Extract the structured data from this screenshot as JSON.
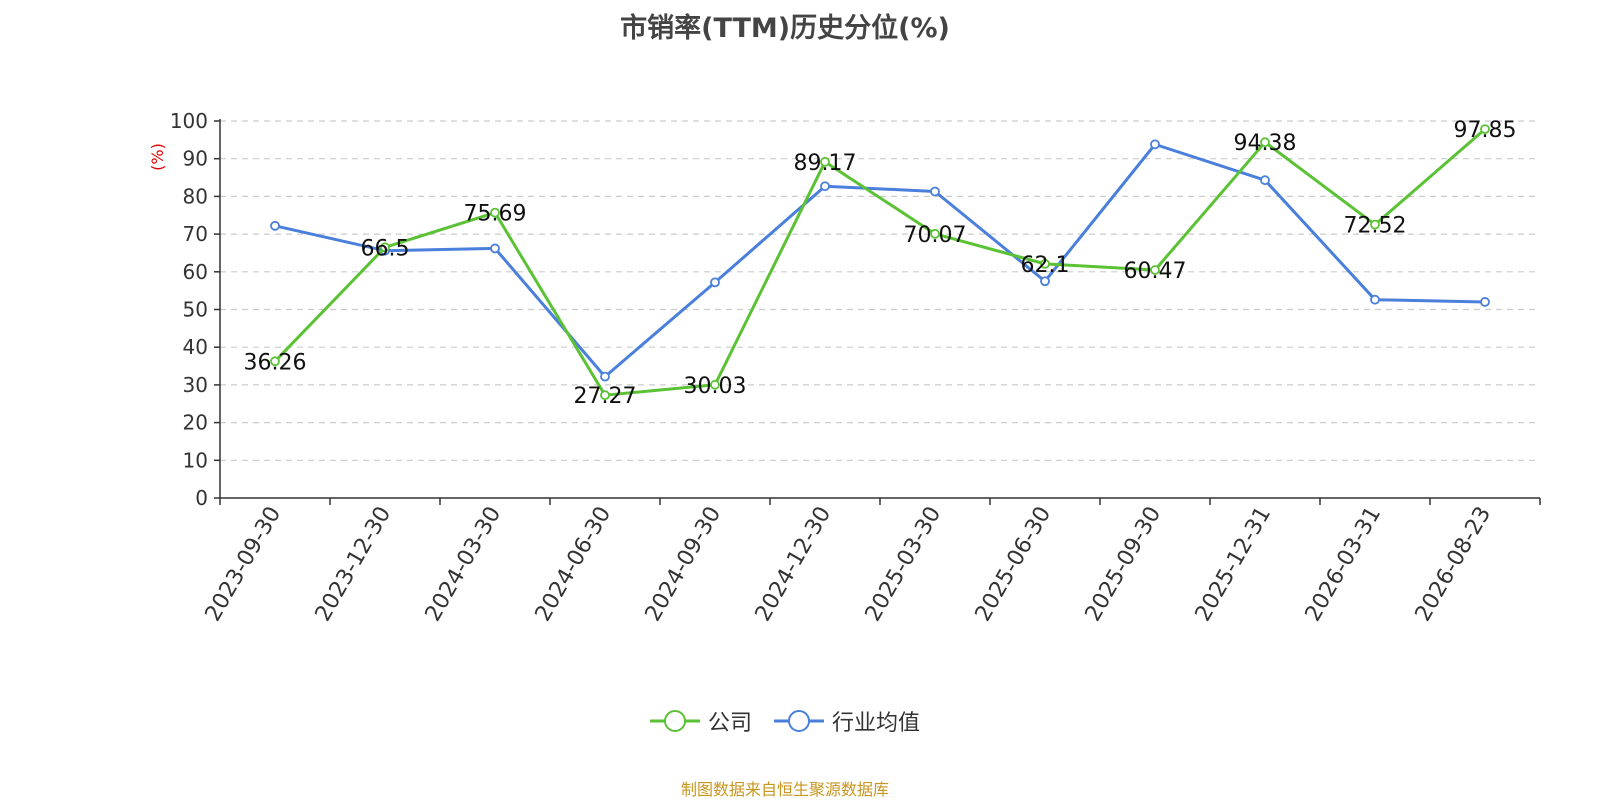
{
  "title": "市销率(TTM)历史分位(%)",
  "source": "制图数据来自恒生聚源数据库",
  "colors": {
    "company": "#5ac234",
    "industry": "#4a7fdb",
    "ylabel": "#e00000"
  },
  "chart_data": {
    "type": "line",
    "title": "市销率(TTM)历史分位(%)",
    "ylabel": "(%)",
    "ylim": [
      0,
      100
    ],
    "yticks": [
      0,
      10,
      20,
      30,
      40,
      50,
      60,
      70,
      80,
      90,
      100
    ],
    "grid": true,
    "legend_position": "bottom",
    "categories": [
      "2023-09-30",
      "2023-12-30",
      "2024-03-30",
      "2024-06-30",
      "2024-09-30",
      "2024-12-30",
      "2025-03-30",
      "2025-06-30",
      "2025-09-30",
      "2025-12-31",
      "2026-03-31",
      "2026-08-23"
    ],
    "series": [
      {
        "name": "公司",
        "values": [
          36.26,
          66.5,
          75.69,
          27.27,
          30.03,
          89.17,
          70.07,
          62.1,
          60.47,
          94.38,
          72.52,
          97.85
        ],
        "labels": [
          "36.26",
          "66.5",
          "75.69",
          "27.27",
          "30.03",
          "89.17",
          "70.07",
          "62.1",
          "60.47",
          "94.38",
          "72.52",
          "97.85"
        ]
      },
      {
        "name": "行业均值",
        "values": [
          72.2,
          65.6,
          66.2,
          32.2,
          57.2,
          82.7,
          81.3,
          57.5,
          93.8,
          84.3,
          52.6,
          52.0
        ]
      }
    ]
  }
}
